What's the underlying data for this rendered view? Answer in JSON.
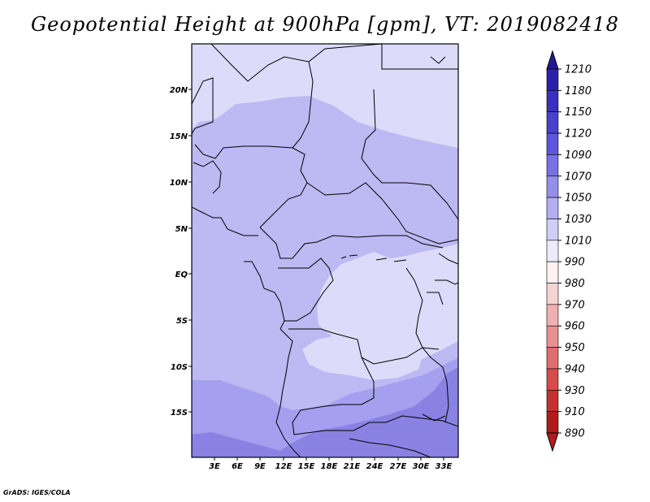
{
  "title": "Geopotential Height at 900hPa [gpm], VT: 2019082418",
  "footer": "GrADS: IGES/COLA",
  "map": {
    "lat_labels": [
      "20N",
      "15N",
      "10N",
      "5N",
      "EQ",
      "5S",
      "10S",
      "15S"
    ],
    "lon_labels": [
      "3E",
      "6E",
      "9E",
      "12E",
      "15E",
      "18E",
      "21E",
      "24E",
      "27E",
      "30E",
      "33E"
    ],
    "colors": {
      "band_1010_1030": "#dcdcfa",
      "band_1030_1050": "#bdb9f3",
      "band_1050_1070": "#a49fee",
      "band_1070_1090": "#8a82e3",
      "border": "#000000"
    }
  },
  "colorbar": {
    "levels": [
      "1210",
      "1180",
      "1150",
      "1120",
      "1090",
      "1070",
      "1050",
      "1030",
      "1010",
      "990",
      "980",
      "970",
      "960",
      "950",
      "940",
      "930",
      "910",
      "890"
    ],
    "colors": [
      "#231891",
      "#2c21a6",
      "#3a30bd",
      "#4a40cc",
      "#5e55d8",
      "#7a70e2",
      "#958eea",
      "#b3aef1",
      "#d0cdf6",
      "#ecebfb",
      "#fdf1f1",
      "#f7d4d4",
      "#f0b0b0",
      "#e89090",
      "#df6e6e",
      "#d44c4c",
      "#c53030",
      "#b01c1c"
    ]
  }
}
